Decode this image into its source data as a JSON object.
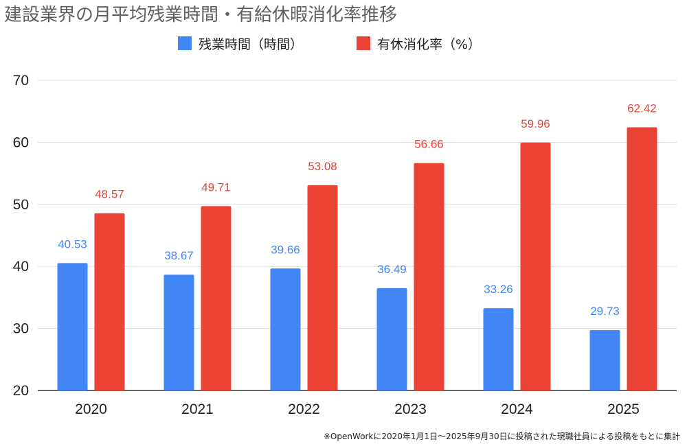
{
  "chart_data": {
    "type": "bar",
    "title": "建設業界の月平均残業時間・有給休暇消化率推移",
    "categories": [
      "2020",
      "2021",
      "2022",
      "2023",
      "2024",
      "2025"
    ],
    "series": [
      {
        "name": "残業時間（時間）",
        "color": "#4285f4",
        "values": [
          40.53,
          38.67,
          39.66,
          36.49,
          33.26,
          29.73
        ]
      },
      {
        "name": "有休消化率（%）",
        "color": "#ea4335",
        "values": [
          48.57,
          49.71,
          53.08,
          56.66,
          59.96,
          62.42
        ]
      }
    ],
    "ylim": [
      20,
      70
    ],
    "yticks": [
      20,
      30,
      40,
      50,
      60,
      70
    ],
    "grid": true,
    "legend": "top-center",
    "data_labels": true,
    "footnote": "※OpenWorkに2020年1月1日〜2025年9月30日に投稿された現職社員による投稿をもとに集計"
  }
}
